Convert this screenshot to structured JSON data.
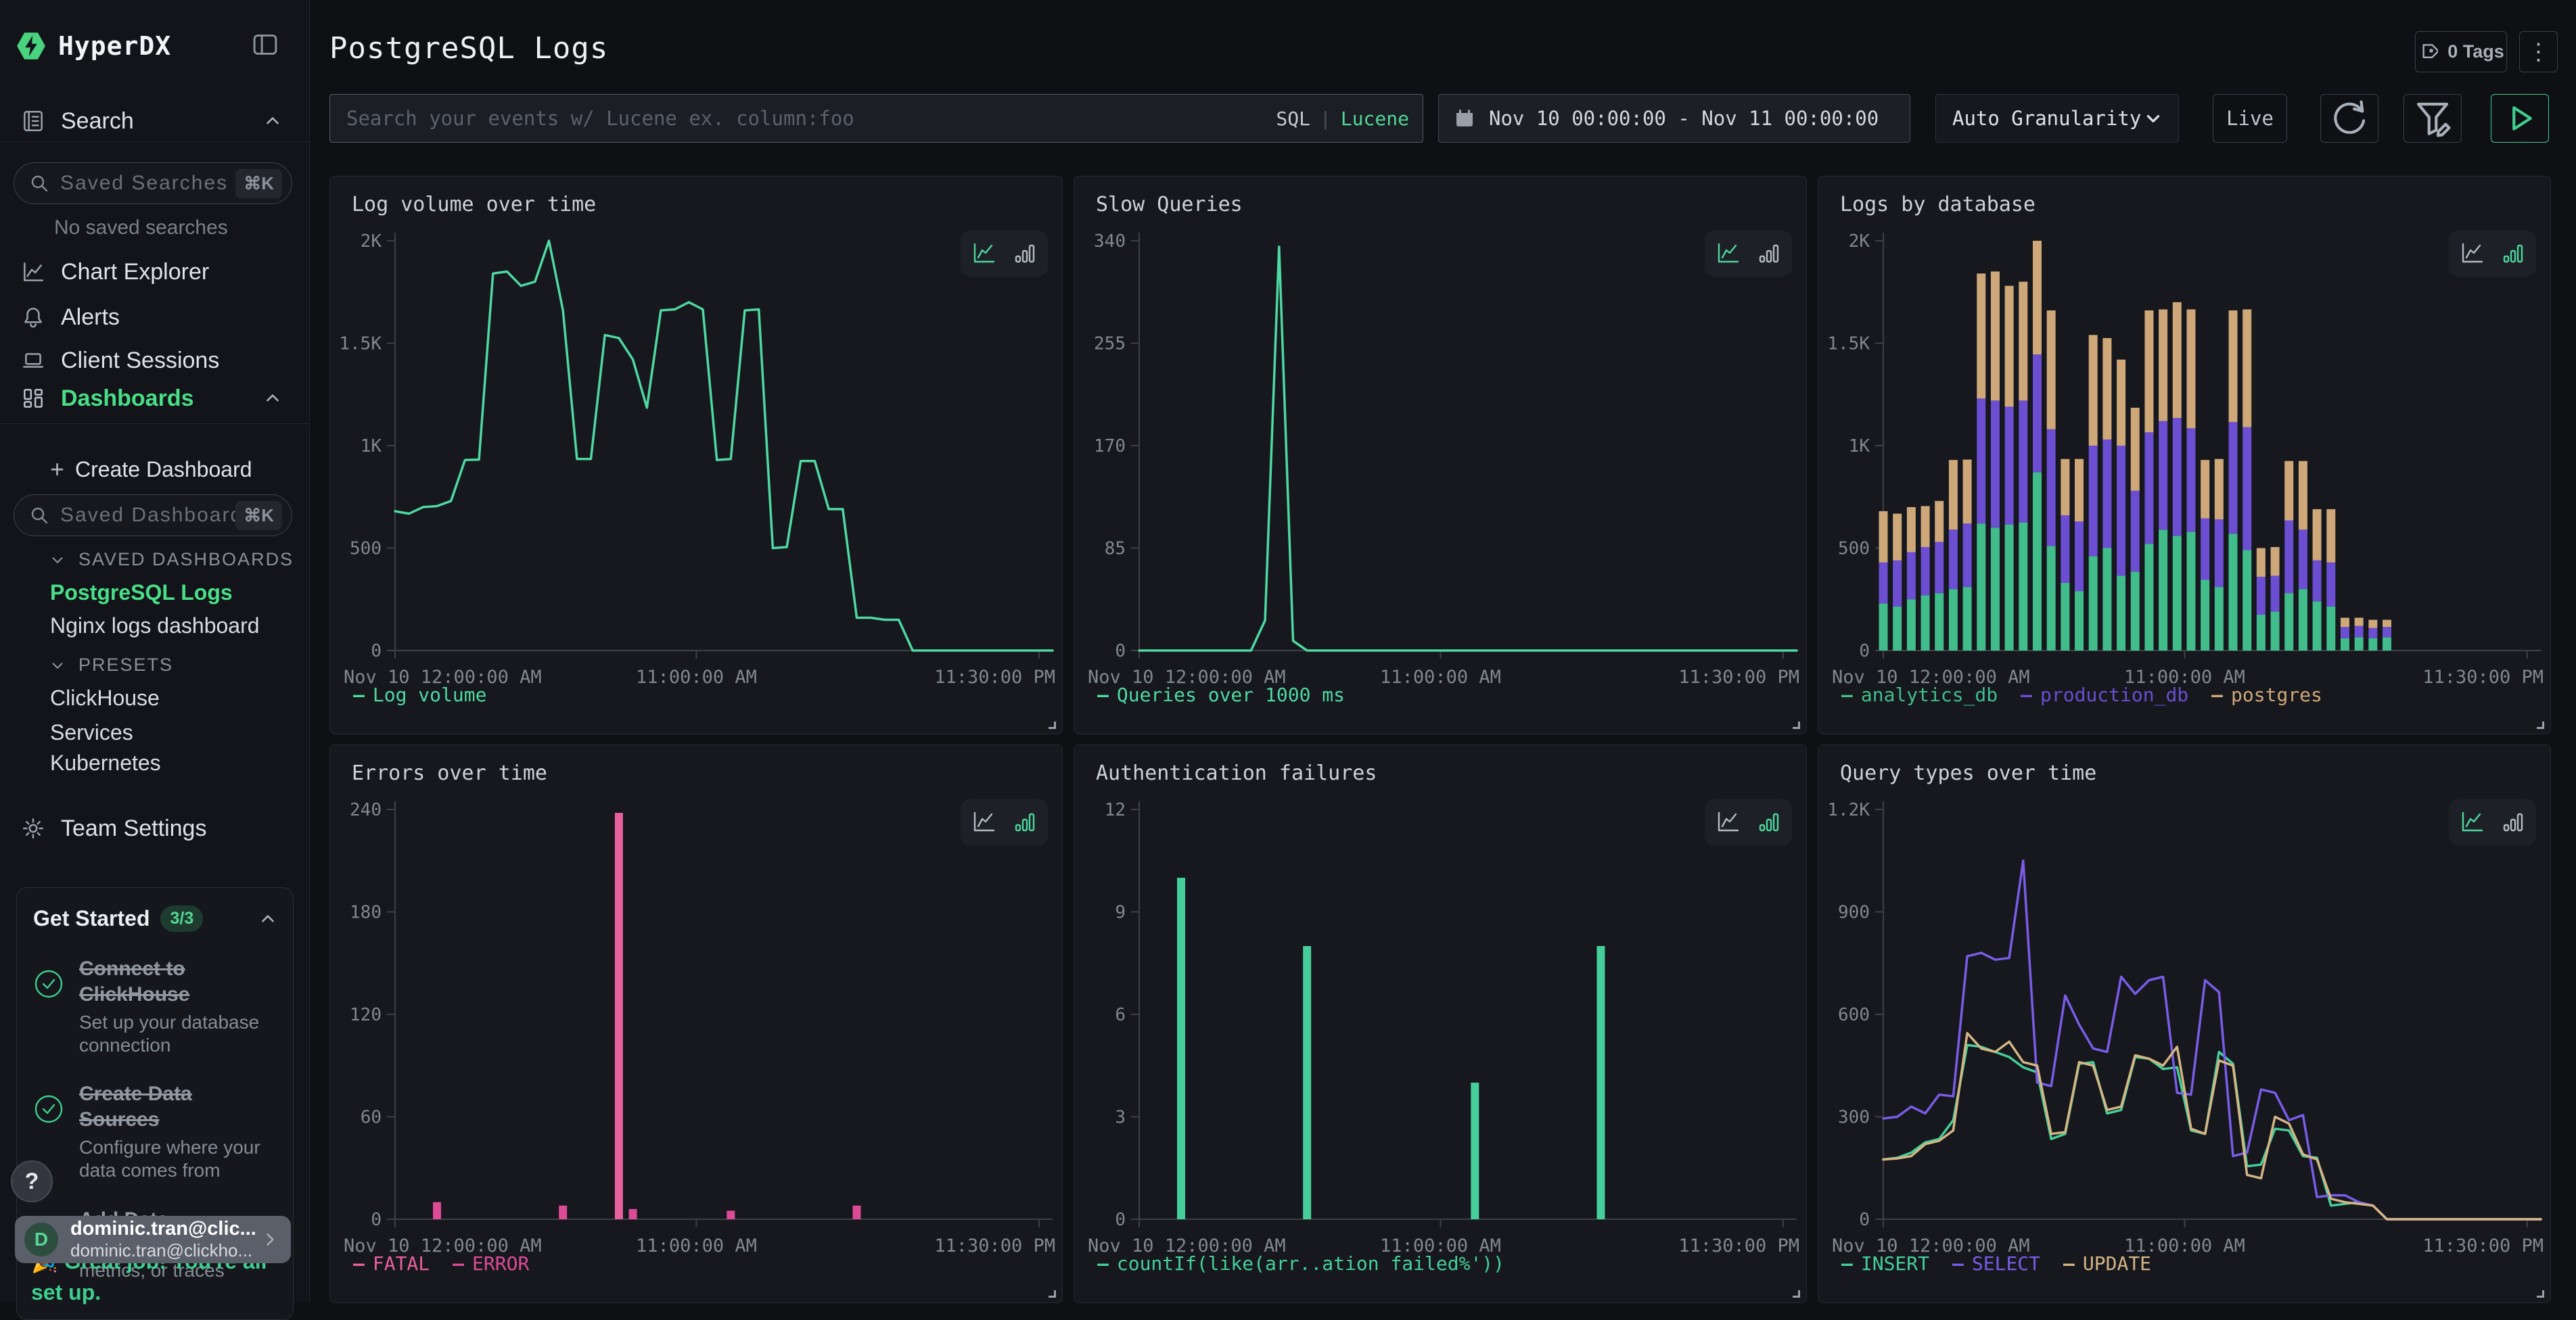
{
  "colors": {
    "accent_green": "#4fd79d",
    "series_green": "#46cf9a",
    "series_purple": "#7a5ce8",
    "bar_green": "#41bd8b",
    "bar_purple": "#6b4ed2",
    "bar_tan": "#cfa87a",
    "pink_fatal": "#e8619f",
    "pink_error": "#dd4b97",
    "sidebar_active": "#4ade87"
  },
  "sidebar": {
    "logo": {
      "text": "HyperDX",
      "icon": "lightning-hexagon"
    },
    "collapse_icon": "panel-collapse",
    "nav": [
      {
        "label": "Search",
        "icon": "log-search",
        "chevron": "up"
      },
      {
        "label": "Chart Explorer",
        "icon": "chart-line"
      },
      {
        "label": "Alerts",
        "icon": "bell"
      },
      {
        "label": "Client Sessions",
        "icon": "laptop"
      },
      {
        "label": "Dashboards",
        "icon": "grid",
        "chevron": "up",
        "active": true
      }
    ],
    "saved_searches": {
      "placeholder": "Saved Searches",
      "shortcut": "⌘K"
    },
    "no_saved_searches": "No saved searches",
    "create_dashboard": "Create Dashboard",
    "saved_dashboards": {
      "placeholder": "Saved Dashboards",
      "shortcut": "⌘K"
    },
    "sections": {
      "saved": {
        "title": "SAVED DASHBOARDS",
        "items": [
          {
            "label": "PostgreSQL Logs",
            "active": true
          },
          {
            "label": "Nginx logs dashboard"
          }
        ]
      },
      "presets": {
        "title": "PRESETS",
        "items": [
          {
            "label": "ClickHouse"
          },
          {
            "label": "Services"
          },
          {
            "label": "Kubernetes"
          }
        ]
      }
    },
    "team_settings": "Team Settings",
    "get_started": {
      "title": "Get Started",
      "badge": "3/3",
      "items": [
        {
          "title": "Connect to ClickHouse",
          "desc": "Set up your database connection",
          "done": true
        },
        {
          "title": "Create Data Sources",
          "desc": "Configure where your data comes from",
          "done": true
        },
        {
          "title": "Add Data",
          "desc": "Start sending logs, metrics, or traces",
          "done": true
        }
      ],
      "note_line1": "🎉 Great job! You're all",
      "note_line2": "set up."
    },
    "help_label": "?",
    "user": {
      "initial": "D",
      "name": "dominic.tran@clic...",
      "email": "dominic.tran@clickho..."
    }
  },
  "header": {
    "title": "PostgreSQL Logs",
    "tags_label": "0 Tags",
    "kebab": "⋮"
  },
  "toolbar": {
    "search_placeholder": "Search your events w/ Lucene ex. column:foo",
    "sql": "SQL",
    "pipe": "|",
    "lucene": "Lucene",
    "daterange": "Nov 10 00:00:00 - Nov 11 00:00:00",
    "granularity": "Auto Granularity",
    "live": "Live"
  },
  "chart_data": [
    {
      "type": "line",
      "title": "Log volume over time",
      "ymax": 2000,
      "y_ticks": [
        "0",
        "500",
        "1K",
        "1.5K",
        "2K"
      ],
      "x_ticks": [
        "Nov 10 12:00:00 AM",
        "11:00:00 AM",
        "11:30:00 PM"
      ],
      "xrange": "Nov 10 00:00 - Nov 11 00:00",
      "grid": false,
      "legend_position": "bottom-left",
      "series": [
        {
          "name": "Log volume",
          "color": "#4fd8a2",
          "values": [
            680,
            668,
            700,
            705,
            730,
            930,
            932,
            1840,
            1850,
            1780,
            1800,
            2000,
            1660,
            935,
            935,
            1540,
            1525,
            1420,
            1185,
            1660,
            1665,
            1700,
            1665,
            930,
            935,
            1660,
            1665,
            500,
            505,
            925,
            925,
            690,
            690,
            160,
            160,
            150,
            150,
            0,
            0,
            0,
            0,
            0,
            0,
            0,
            0,
            0,
            0,
            0
          ]
        }
      ]
    },
    {
      "type": "line",
      "title": "Slow Queries",
      "ymax": 340,
      "y_ticks": [
        "0",
        "85",
        "170",
        "255",
        "340"
      ],
      "x_ticks": [
        "Nov 10 12:00:00 AM",
        "11:00:00 AM",
        "11:30:00 PM"
      ],
      "xrange": "Nov 10 00:00 - Nov 11 00:00",
      "grid": false,
      "legend_position": "bottom-left",
      "series": [
        {
          "name": "Queries over 1000 ms",
          "color": "#4fd8a2",
          "values": [
            0,
            0,
            0,
            0,
            0,
            0,
            0,
            0,
            0,
            25,
            335,
            8,
            0,
            0,
            0,
            0,
            0,
            0,
            0,
            0,
            0,
            0,
            0,
            0,
            0,
            0,
            0,
            0,
            0,
            0,
            0,
            0,
            0,
            0,
            0,
            0,
            0,
            0,
            0,
            0,
            0,
            0,
            0,
            0,
            0,
            0,
            0,
            0
          ]
        }
      ]
    },
    {
      "type": "stacked-bar",
      "title": "Logs by database",
      "ymax": 2000,
      "y_ticks": [
        "0",
        "500",
        "1K",
        "1.5K",
        "2K"
      ],
      "x_ticks": [
        "Nov 10 12:00:00 AM",
        "11:00:00 AM",
        "11:30:00 PM"
      ],
      "xrange": "Nov 10 00:00 - Nov 11 00:00",
      "grid": false,
      "legend_position": "bottom-left",
      "series": [
        {
          "name": "analytics_db",
          "color": "#41bd8b",
          "values": [
            230,
            215,
            250,
            270,
            280,
            300,
            310,
            620,
            600,
            615,
            625,
            870,
            510,
            330,
            290,
            460,
            500,
            365,
            385,
            520,
            590,
            560,
            580,
            345,
            310,
            570,
            490,
            175,
            190,
            280,
            300,
            240,
            215,
            60,
            65,
            60,
            65,
            0,
            0,
            0,
            0,
            0,
            0,
            0,
            0,
            0,
            0,
            0
          ]
        },
        {
          "name": "production_db",
          "color": "#6b4ed2",
          "values": [
            200,
            225,
            230,
            235,
            250,
            290,
            310,
            610,
            620,
            575,
            595,
            575,
            570,
            330,
            340,
            540,
            530,
            635,
            395,
            545,
            530,
            575,
            505,
            300,
            330,
            545,
            600,
            185,
            175,
            355,
            290,
            200,
            215,
            55,
            55,
            50,
            50,
            0,
            0,
            0,
            0,
            0,
            0,
            0,
            0,
            0,
            0,
            0
          ]
        },
        {
          "name": "postgres",
          "color": "#cfa87a",
          "values": [
            250,
            228,
            220,
            200,
            200,
            340,
            312,
            610,
            630,
            590,
            580,
            555,
            580,
            275,
            305,
            540,
            495,
            420,
            405,
            595,
            545,
            565,
            580,
            285,
            295,
            545,
            575,
            140,
            140,
            290,
            335,
            250,
            260,
            45,
            40,
            40,
            35,
            0,
            0,
            0,
            0,
            0,
            0,
            0,
            0,
            0,
            0,
            0
          ]
        }
      ]
    },
    {
      "type": "bar",
      "title": "Errors over time",
      "ymax": 240,
      "y_ticks": [
        "0",
        "60",
        "120",
        "180",
        "240"
      ],
      "x_ticks": [
        "Nov 10 12:00:00 AM",
        "11:00:00 AM",
        "11:30:00 PM"
      ],
      "xrange": "Nov 10 00:00 - Nov 11 00:00",
      "grid": false,
      "legend_position": "bottom-left",
      "series": [
        {
          "name": "FATAL",
          "color": "#e8619f",
          "values": [
            0,
            0,
            0,
            0,
            0,
            0,
            0,
            0,
            0,
            0,
            0,
            0,
            0,
            0,
            0,
            0,
            238,
            0,
            0,
            0,
            0,
            0,
            0,
            0,
            0,
            0,
            0,
            0,
            0,
            0,
            0,
            0,
            0,
            0,
            0,
            0,
            0,
            0,
            0,
            0,
            0,
            0,
            0,
            0,
            0,
            0,
            0,
            0
          ]
        },
        {
          "name": "ERROR",
          "color": "#dd4b97",
          "values": [
            0,
            0,
            0,
            10,
            0,
            0,
            0,
            0,
            0,
            0,
            0,
            0,
            8,
            0,
            0,
            0,
            0,
            6,
            0,
            0,
            0,
            0,
            0,
            0,
            5,
            0,
            0,
            0,
            0,
            0,
            0,
            0,
            0,
            8,
            0,
            0,
            0,
            0,
            0,
            0,
            0,
            0,
            0,
            0,
            0,
            0,
            0,
            0
          ]
        }
      ]
    },
    {
      "type": "bar",
      "title": "Authentication failures",
      "ymax": 12,
      "y_ticks": [
        "0",
        "3",
        "6",
        "9",
        "12"
      ],
      "x_ticks": [
        "Nov 10 12:00:00 AM",
        "11:00:00 AM",
        "11:30:00 PM"
      ],
      "xrange": "Nov 10 00:00 - Nov 11 00:00",
      "grid": false,
      "legend_position": "bottom-left",
      "series": [
        {
          "name": "countIf(like(arr..ation failed%'))",
          "color": "#46cf9a",
          "values": [
            0,
            0,
            0,
            10,
            0,
            0,
            0,
            0,
            0,
            0,
            0,
            0,
            8,
            0,
            0,
            0,
            0,
            0,
            0,
            0,
            0,
            0,
            0,
            0,
            4,
            0,
            0,
            0,
            0,
            0,
            0,
            0,
            0,
            8,
            0,
            0,
            0,
            0,
            0,
            0,
            0,
            0,
            0,
            0,
            0,
            0,
            0,
            0
          ]
        }
      ]
    },
    {
      "type": "line",
      "title": "Query types over time",
      "ymax": 1200,
      "y_ticks": [
        "0",
        "300",
        "600",
        "900",
        "1.2K"
      ],
      "x_ticks": [
        "Nov 10 12:00:00 AM",
        "11:00:00 AM",
        "11:30:00 PM"
      ],
      "xrange": "Nov 10 00:00 - Nov 11 00:00",
      "grid": false,
      "legend_position": "bottom-left",
      "series": [
        {
          "name": "INSERT",
          "color": "#46cf9a",
          "values": [
            175,
            180,
            195,
            225,
            235,
            290,
            510,
            505,
            490,
            475,
            445,
            430,
            235,
            250,
            455,
            460,
            310,
            320,
            475,
            470,
            440,
            445,
            260,
            250,
            490,
            455,
            155,
            160,
            265,
            260,
            185,
            180,
            40,
            45,
            50,
            40,
            0,
            0,
            0,
            0,
            0,
            0,
            0,
            0,
            0,
            0,
            0,
            0
          ]
        },
        {
          "name": "SELECT",
          "color": "#7a5ce8",
          "values": [
            295,
            300,
            330,
            310,
            365,
            360,
            770,
            780,
            760,
            765,
            1050,
            400,
            390,
            655,
            570,
            500,
            490,
            710,
            660,
            700,
            710,
            370,
            365,
            700,
            665,
            185,
            195,
            380,
            370,
            290,
            305,
            65,
            70,
            70,
            50,
            40,
            0,
            0,
            0,
            0,
            0,
            0,
            0,
            0,
            0,
            0,
            0,
            0
          ]
        },
        {
          "name": "UPDATE",
          "color": "#d6b585",
          "values": [
            175,
            178,
            185,
            220,
            230,
            260,
            545,
            500,
            490,
            520,
            460,
            450,
            250,
            255,
            460,
            450,
            320,
            330,
            480,
            470,
            450,
            505,
            265,
            250,
            465,
            450,
            130,
            120,
            300,
            280,
            190,
            175,
            60,
            50,
            45,
            40,
            0,
            0,
            0,
            0,
            0,
            0,
            0,
            0,
            0,
            0,
            0,
            0
          ]
        }
      ]
    }
  ]
}
